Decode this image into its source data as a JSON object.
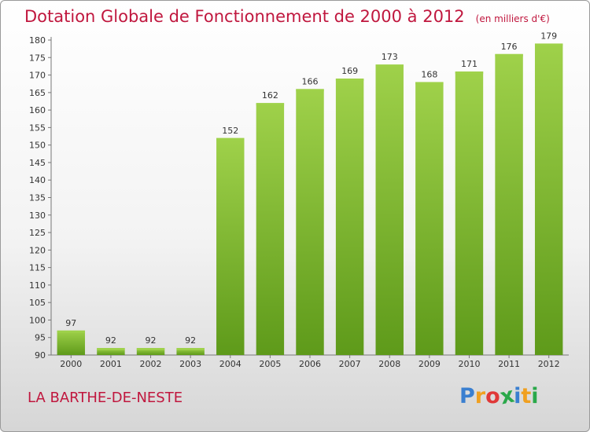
{
  "title": "Dotation Globale de Fonctionnement de 2000 à 2012",
  "subtitle": "(en milliers d'€)",
  "commune": "LA BARTHE-DE-NESTE",
  "logo": {
    "letters": [
      "P",
      "r",
      "o",
      "x",
      "i",
      "t",
      "i"
    ],
    "colors": [
      "#3a7fd0",
      "#f0a020",
      "#e03838",
      "#2aa84a",
      "#3a7fd0",
      "#f0a020",
      "#2aa84a"
    ]
  },
  "chart_data": {
    "type": "bar",
    "categories": [
      "2000",
      "2001",
      "2002",
      "2003",
      "2004",
      "2005",
      "2006",
      "2007",
      "2008",
      "2009",
      "2010",
      "2011",
      "2012"
    ],
    "values": [
      97,
      92,
      92,
      92,
      152,
      162,
      166,
      169,
      173,
      168,
      171,
      176,
      179
    ],
    "data_labels": [
      "97",
      "92",
      "92",
      "92",
      "152",
      "162",
      "166",
      "169",
      "173",
      "168",
      "171",
      "176",
      "179"
    ],
    "ylim": [
      90,
      180
    ],
    "yticks": [
      "90",
      "95",
      "100",
      "105",
      "110",
      "115",
      "120",
      "125",
      "130",
      "135",
      "140",
      "145",
      "150",
      "155",
      "160",
      "165",
      "170",
      "175",
      "180"
    ],
    "grid": false,
    "bar_color": "#7cc02e",
    "bar_color_light": "#9fd14a",
    "bar_color_dark": "#5e9a1a"
  }
}
